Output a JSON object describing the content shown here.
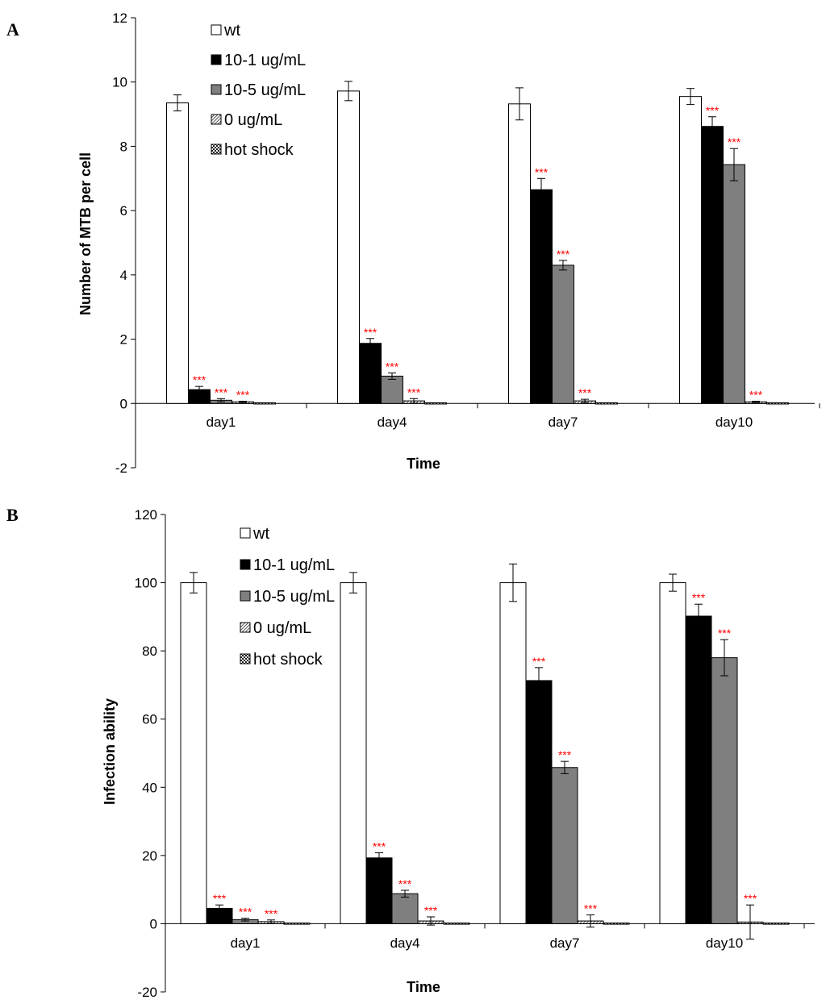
{
  "chart_data": [
    {
      "type": "bar",
      "panel_label": "A",
      "xlabel": "Time",
      "ylabel": "Number of MTB per cell",
      "ylim": [
        -2,
        12
      ],
      "yticks": [
        -2,
        0,
        2,
        4,
        6,
        8,
        10,
        12
      ],
      "categories": [
        "day1",
        "day4",
        "day7",
        "day10"
      ],
      "legend_position": "top-left",
      "series": [
        {
          "name": "wt",
          "pattern": "white",
          "values": [
            9.35,
            9.72,
            9.32,
            9.55
          ],
          "errors": [
            0.25,
            0.3,
            0.5,
            0.25
          ],
          "stars": [
            "",
            "",
            "",
            ""
          ]
        },
        {
          "name": "10-1 ug/mL",
          "pattern": "black",
          "values": [
            0.43,
            1.87,
            6.65,
            8.62
          ],
          "errors": [
            0.1,
            0.15,
            0.35,
            0.3
          ],
          "stars": [
            "***",
            "***",
            "***",
            "***"
          ]
        },
        {
          "name": "10-5 ug/mL",
          "pattern": "gray",
          "values": [
            0.1,
            0.85,
            4.3,
            7.43
          ],
          "errors": [
            0.05,
            0.1,
            0.15,
            0.5
          ],
          "stars": [
            "***",
            "***",
            "***",
            "***"
          ]
        },
        {
          "name": "0 ug/mL",
          "pattern": "hatch",
          "values": [
            0.05,
            0.08,
            0.08,
            0.05
          ],
          "errors": [
            0.02,
            0.07,
            0.05,
            0.02
          ],
          "stars": [
            "***",
            "***",
            "***",
            "***"
          ]
        },
        {
          "name": "hot shock",
          "pattern": "checker",
          "values": [
            0.02,
            0.02,
            0.02,
            0.02
          ],
          "errors": [
            0,
            0,
            0,
            0
          ],
          "stars": [
            "",
            "",
            "",
            ""
          ]
        }
      ]
    },
    {
      "type": "bar",
      "panel_label": "B",
      "xlabel": "Time",
      "ylabel": "Infection ability",
      "ylim": [
        -20,
        120
      ],
      "yticks": [
        -20,
        0,
        20,
        40,
        60,
        80,
        100,
        120
      ],
      "categories": [
        "day1",
        "day4",
        "day7",
        "day10"
      ],
      "legend_position": "top-left",
      "series": [
        {
          "name": "wt",
          "pattern": "white",
          "values": [
            100,
            100,
            100,
            100
          ],
          "errors": [
            3,
            3,
            5.5,
            2.5
          ],
          "stars": [
            "",
            "",
            "",
            ""
          ]
        },
        {
          "name": "10-1 ug/mL",
          "pattern": "black",
          "values": [
            4.5,
            19.3,
            71.3,
            90.2
          ],
          "errors": [
            1,
            1.5,
            3.8,
            3.5
          ],
          "stars": [
            "***",
            "***",
            "***",
            "***"
          ]
        },
        {
          "name": "10-5 ug/mL",
          "pattern": "gray",
          "values": [
            1.2,
            8.8,
            45.8,
            78
          ],
          "errors": [
            0.4,
            1,
            1.8,
            5.3
          ],
          "stars": [
            "***",
            "***",
            "***",
            "***"
          ]
        },
        {
          "name": "0 ug/mL",
          "pattern": "hatch",
          "values": [
            0.6,
            0.8,
            0.8,
            0.5
          ],
          "errors": [
            0.5,
            1.2,
            1.8,
            5
          ],
          "stars": [
            "***",
            "***",
            "***",
            "***"
          ]
        },
        {
          "name": "hot shock",
          "pattern": "checker",
          "values": [
            0.2,
            0.2,
            0.2,
            0.2
          ],
          "errors": [
            0,
            0,
            0,
            0
          ],
          "stars": [
            "",
            "",
            "",
            ""
          ]
        }
      ]
    }
  ]
}
